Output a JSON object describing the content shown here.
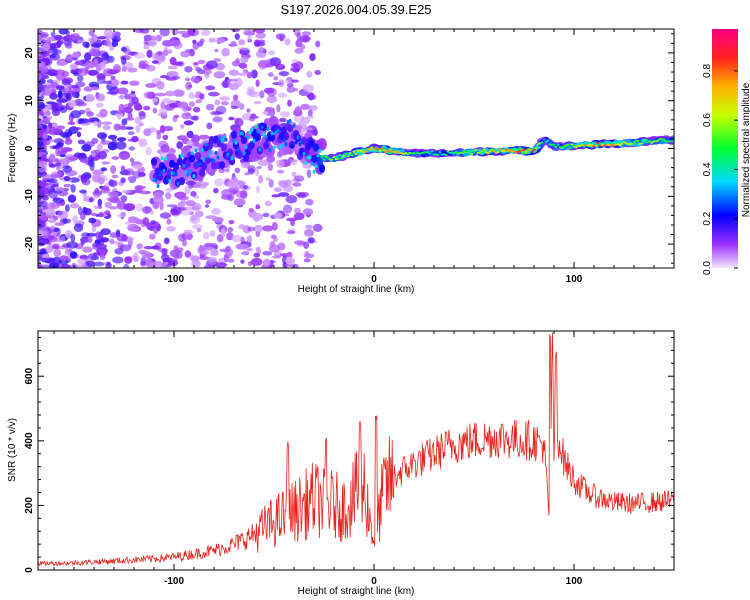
{
  "title": "S197.2026.004.05.39.E25",
  "chart_data": [
    {
      "type": "heatmap",
      "name": "spectrogram",
      "xlabel": "Height of straight line (km)",
      "ylabel": "Frequency (Hz)",
      "xlim": [
        -168,
        150
      ],
      "ylim": [
        -25,
        25
      ],
      "xticks": [
        -100,
        0,
        100
      ],
      "yticks": [
        -20,
        -10,
        0,
        10,
        20
      ],
      "colorbar": {
        "label": "Normalized spectral amplitude",
        "range": [
          0,
          0.97
        ],
        "ticks": [
          0.0,
          0.2,
          0.4,
          0.6,
          0.8
        ],
        "tick_labels": [
          "0.0",
          "0.2",
          "0.4",
          "0.6",
          "0.8"
        ]
      },
      "ridge": {
        "description_points_height_km": [
          -100,
          -90,
          -80,
          -70,
          -60,
          -50,
          -40,
          -35,
          -30,
          -20,
          -10,
          0,
          10,
          20,
          40,
          60,
          80,
          85,
          90,
          100,
          110,
          120,
          130,
          140,
          150
        ],
        "frequency_hz": [
          -5,
          -3,
          -1,
          0,
          1.5,
          2.5,
          3,
          0,
          -2,
          -2,
          -1,
          0,
          -0.5,
          -1,
          -1,
          -0.5,
          -0.5,
          2,
          0.5,
          0.5,
          0.8,
          1,
          1.2,
          1.6,
          1.8
        ],
        "peak_amplitude": [
          0.35,
          0.35,
          0.3,
          0.35,
          0.4,
          0.35,
          0.3,
          0.35,
          0.4,
          0.6,
          0.7,
          0.75,
          0.8,
          0.5,
          0.5,
          0.75,
          0.9,
          0.4,
          0.5,
          0.6,
          0.9,
          0.8,
          0.6,
          0.6,
          0.5
        ]
      }
    },
    {
      "type": "line",
      "name": "snr",
      "xlabel": "Height of straight line (km)",
      "ylabel": "SNR (10 * v/v)",
      "xlim": [
        -168,
        150
      ],
      "ylim": [
        0,
        740
      ],
      "xticks": [
        -100,
        0,
        100
      ],
      "yticks": [
        0,
        200,
        400,
        600
      ],
      "color": "#e8221c",
      "series": [
        {
          "name": "SNR",
          "x": [
            -168,
            -150,
            -130,
            -110,
            -100,
            -90,
            -80,
            -70,
            -60,
            -50,
            -40,
            -35,
            -30,
            -25,
            -20,
            -15,
            -10,
            -5,
            0,
            5,
            10,
            20,
            30,
            40,
            50,
            60,
            70,
            80,
            85,
            88,
            89,
            90,
            92,
            95,
            100,
            105,
            110,
            120,
            130,
            140,
            150
          ],
          "y": [
            20,
            22,
            28,
            35,
            40,
            50,
            60,
            80,
            110,
            150,
            180,
            200,
            220,
            210,
            200,
            190,
            230,
            260,
            90,
            250,
            290,
            330,
            360,
            390,
            400,
            410,
            405,
            400,
            390,
            120,
            740,
            350,
            420,
            340,
            280,
            250,
            230,
            210,
            205,
            210,
            215
          ]
        }
      ],
      "spikes": [
        {
          "x": -43,
          "y": 400
        },
        {
          "x": -24,
          "y": 420
        },
        {
          "x": -7,
          "y": 470
        },
        {
          "x": 1,
          "y": 480
        },
        {
          "x": 88,
          "y": 740
        },
        {
          "x": 91,
          "y": 680
        }
      ]
    }
  ]
}
